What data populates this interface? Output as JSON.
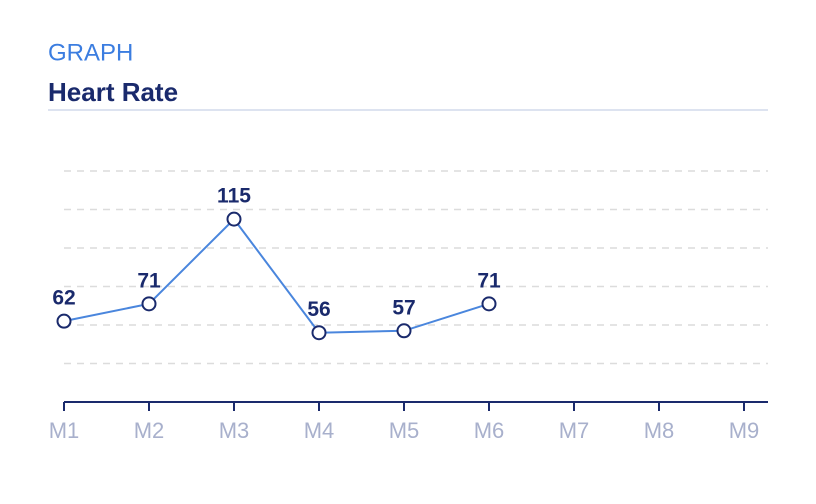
{
  "header": {
    "kicker": "GRAPH",
    "title": "Heart Rate"
  },
  "chart_data": {
    "type": "line",
    "categories": [
      "M1",
      "M2",
      "M3",
      "M4",
      "M5",
      "M6",
      "M7",
      "M8",
      "M9"
    ],
    "series": [
      {
        "color": "#4a86dd",
        "values": [
          62,
          71,
          115,
          56,
          57,
          71,
          null,
          null,
          null
        ]
      }
    ],
    "ylim": [
      20,
      140
    ],
    "yticks": [
      40,
      60,
      80,
      100,
      120,
      140
    ],
    "grid": true
  }
}
